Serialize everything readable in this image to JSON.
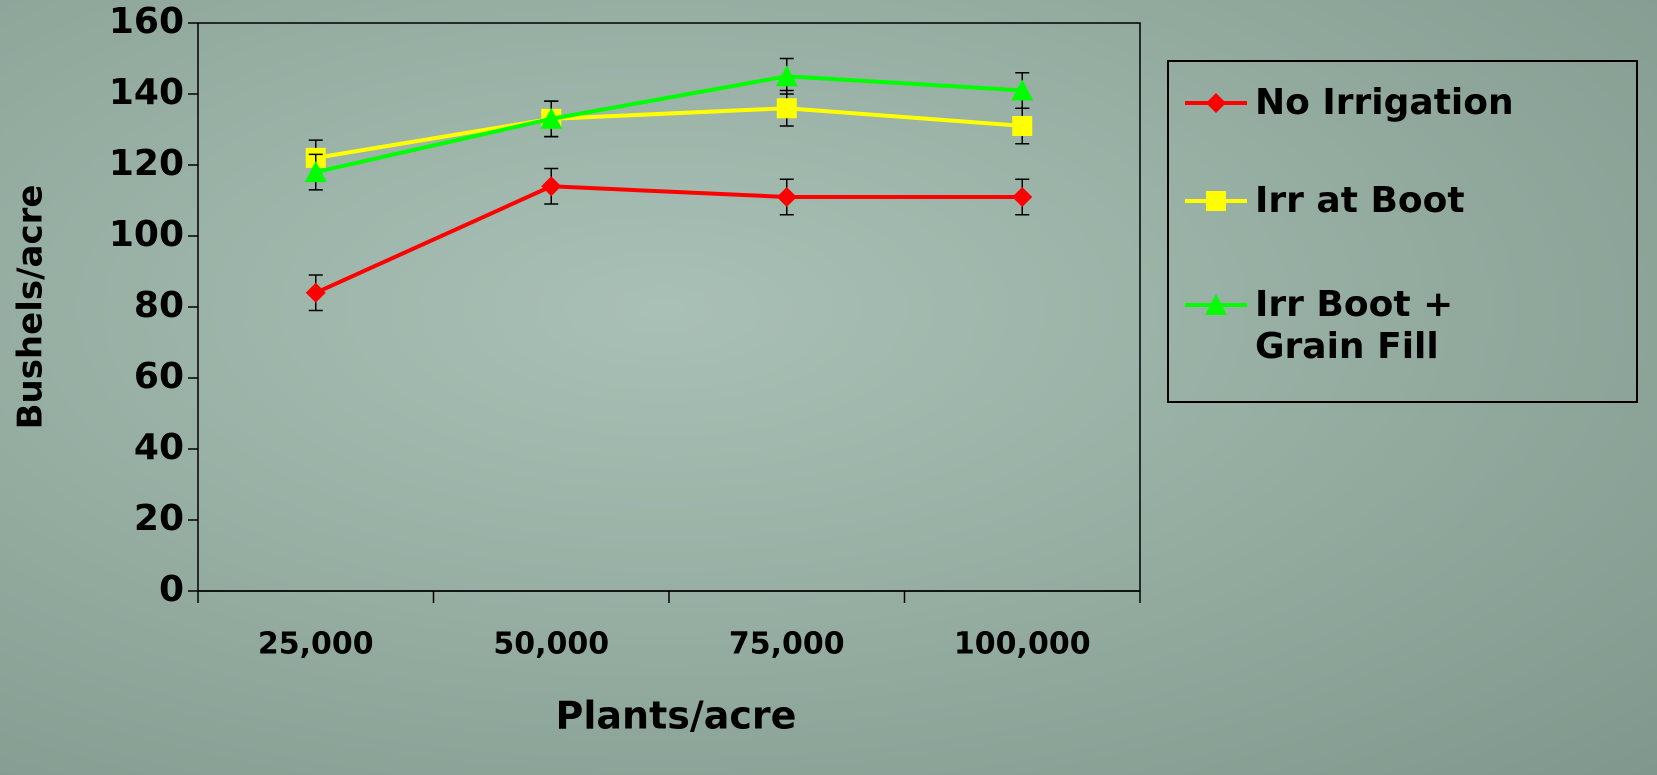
{
  "chart_data": {
    "type": "line",
    "x_label": "Plants/acre",
    "y_label": "Bushels/acre",
    "categories": [
      "25,000",
      "50,000",
      "75,000",
      "100,000"
    ],
    "ylim": [
      0,
      160
    ],
    "yticks": [
      0,
      20,
      40,
      60,
      80,
      100,
      120,
      140,
      160
    ],
    "legend": "right",
    "series": [
      {
        "name": "No Irrigation",
        "color": "#ff0000",
        "marker": "diamond",
        "values": [
          84,
          114,
          111,
          111
        ],
        "errors": [
          5,
          5,
          5,
          5
        ]
      },
      {
        "name": "Irr at Boot",
        "color": "#ffff00",
        "marker": "square",
        "values": [
          122,
          133,
          136,
          131
        ],
        "errors": [
          5,
          5,
          5,
          5
        ]
      },
      {
        "name": "Irr Boot + Grain Fill",
        "color": "#00ff00",
        "marker": "triangle",
        "values": [
          118,
          133,
          145,
          141
        ],
        "errors": [
          5,
          5,
          5,
          5
        ]
      }
    ]
  }
}
